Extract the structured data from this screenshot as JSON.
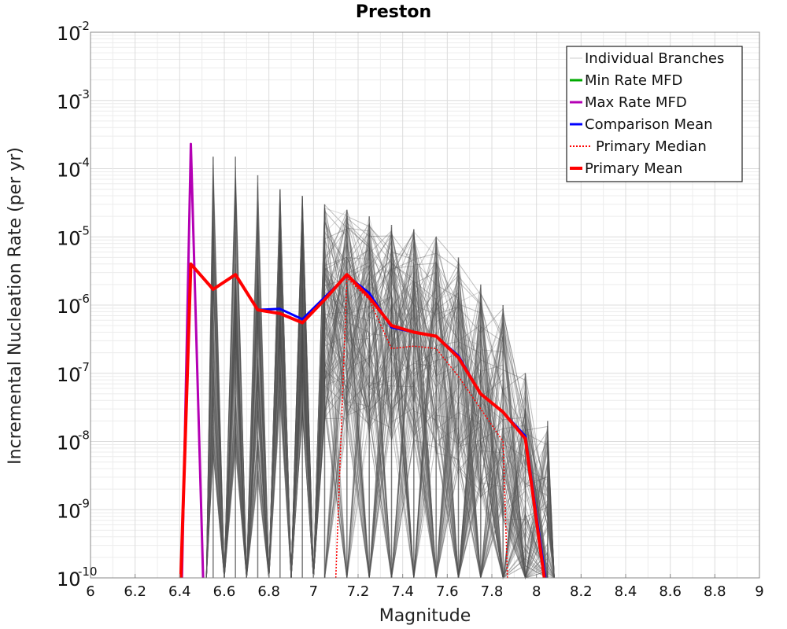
{
  "chart_data": {
    "type": "line",
    "title": "Preston",
    "xlabel": "Magnitude",
    "ylabel": "Incremental Nucleation Rate (per yr)",
    "xlim": [
      6,
      9
    ],
    "ylim": [
      1e-10,
      0.01
    ],
    "yscale": "log",
    "grid": true,
    "legend_position": "top-right",
    "x_ticks": [
      "6",
      "6.2",
      "6.4",
      "6.6",
      "6.8",
      "7",
      "7.2",
      "7.4",
      "7.6",
      "7.8",
      "8",
      "8.2",
      "8.4",
      "8.6",
      "8.8",
      "9"
    ],
    "y_ticks": [
      {
        "base": "10",
        "exp": "-2"
      },
      {
        "base": "10",
        "exp": "-3"
      },
      {
        "base": "10",
        "exp": "-4"
      },
      {
        "base": "10",
        "exp": "-5"
      },
      {
        "base": "10",
        "exp": "-6"
      },
      {
        "base": "10",
        "exp": "-7"
      },
      {
        "base": "10",
        "exp": "-8"
      },
      {
        "base": "10",
        "exp": "-9"
      },
      {
        "base": "10",
        "exp": "-10"
      }
    ],
    "series": [
      {
        "name": "Individual Branches",
        "color": "#555555",
        "style": "thin",
        "peaks": [
          {
            "x": 6.55,
            "y": 0.00015
          },
          {
            "x": 6.65,
            "y": 0.00015
          },
          {
            "x": 6.75,
            "y": 8e-05
          },
          {
            "x": 6.85,
            "y": 5e-05
          },
          {
            "x": 6.95,
            "y": 4e-05
          },
          {
            "x": 7.05,
            "y": 3e-05
          },
          {
            "x": 7.15,
            "y": 2.5e-05
          },
          {
            "x": 7.25,
            "y": 2e-05
          },
          {
            "x": 7.35,
            "y": 1.5e-05
          },
          {
            "x": 7.45,
            "y": 1.3e-05
          },
          {
            "x": 7.55,
            "y": 1e-05
          },
          {
            "x": 7.65,
            "y": 5e-06
          },
          {
            "x": 7.75,
            "y": 2e-06
          },
          {
            "x": 7.85,
            "y": 1e-06
          },
          {
            "x": 7.95,
            "y": 1e-07
          },
          {
            "x": 8.05,
            "y": 2e-08
          }
        ]
      },
      {
        "name": "Min Rate MFD",
        "color": "#00aa00",
        "x": [],
        "y": []
      },
      {
        "name": "Max Rate MFD",
        "color": "#b400b4",
        "x": [
          6.41,
          6.45,
          6.505
        ],
        "y": [
          1e-10,
          0.00023,
          1e-10
        ]
      },
      {
        "name": "Comparison Mean",
        "color": "#0000ff",
        "x": [
          6.75,
          6.85,
          6.95,
          7.05,
          7.15,
          7.25,
          7.35,
          7.45,
          7.55,
          7.65,
          7.75,
          7.85,
          7.95,
          8.04
        ],
        "y": [
          8.5e-07,
          8.8e-07,
          6.2e-07,
          1.3e-06,
          2.7e-06,
          1.5e-06,
          4.7e-07,
          4e-07,
          3.5e-07,
          1.8e-07,
          5e-08,
          2.7e-08,
          1.2e-08,
          1e-10
        ]
      },
      {
        "name": "Primary Median",
        "color": "#ff0000",
        "style": "dotted",
        "x": [
          7.1,
          7.15,
          7.25,
          7.35,
          7.45,
          7.55,
          7.65,
          7.75,
          7.85,
          7.87
        ],
        "y": [
          1e-10,
          2.5e-06,
          1.2e-06,
          2.3e-07,
          2.5e-07,
          2.3e-07,
          9e-08,
          3e-08,
          1e-08,
          1e-10
        ]
      },
      {
        "name": "Primary Mean",
        "color": "#ff0000",
        "style": "thick",
        "x": [
          6.405,
          6.45,
          6.55,
          6.65,
          6.75,
          6.85,
          6.95,
          7.05,
          7.15,
          7.25,
          7.35,
          7.45,
          7.55,
          7.65,
          7.75,
          7.85,
          7.95,
          8.035
        ],
        "y": [
          1e-10,
          4e-06,
          1.7e-06,
          2.8e-06,
          8.5e-07,
          7.5e-07,
          5.5e-07,
          1.2e-06,
          2.8e-06,
          1.3e-06,
          5e-07,
          4e-07,
          3.5e-07,
          1.7e-07,
          5e-08,
          2.7e-08,
          1.1e-08,
          1e-10
        ]
      }
    ]
  }
}
